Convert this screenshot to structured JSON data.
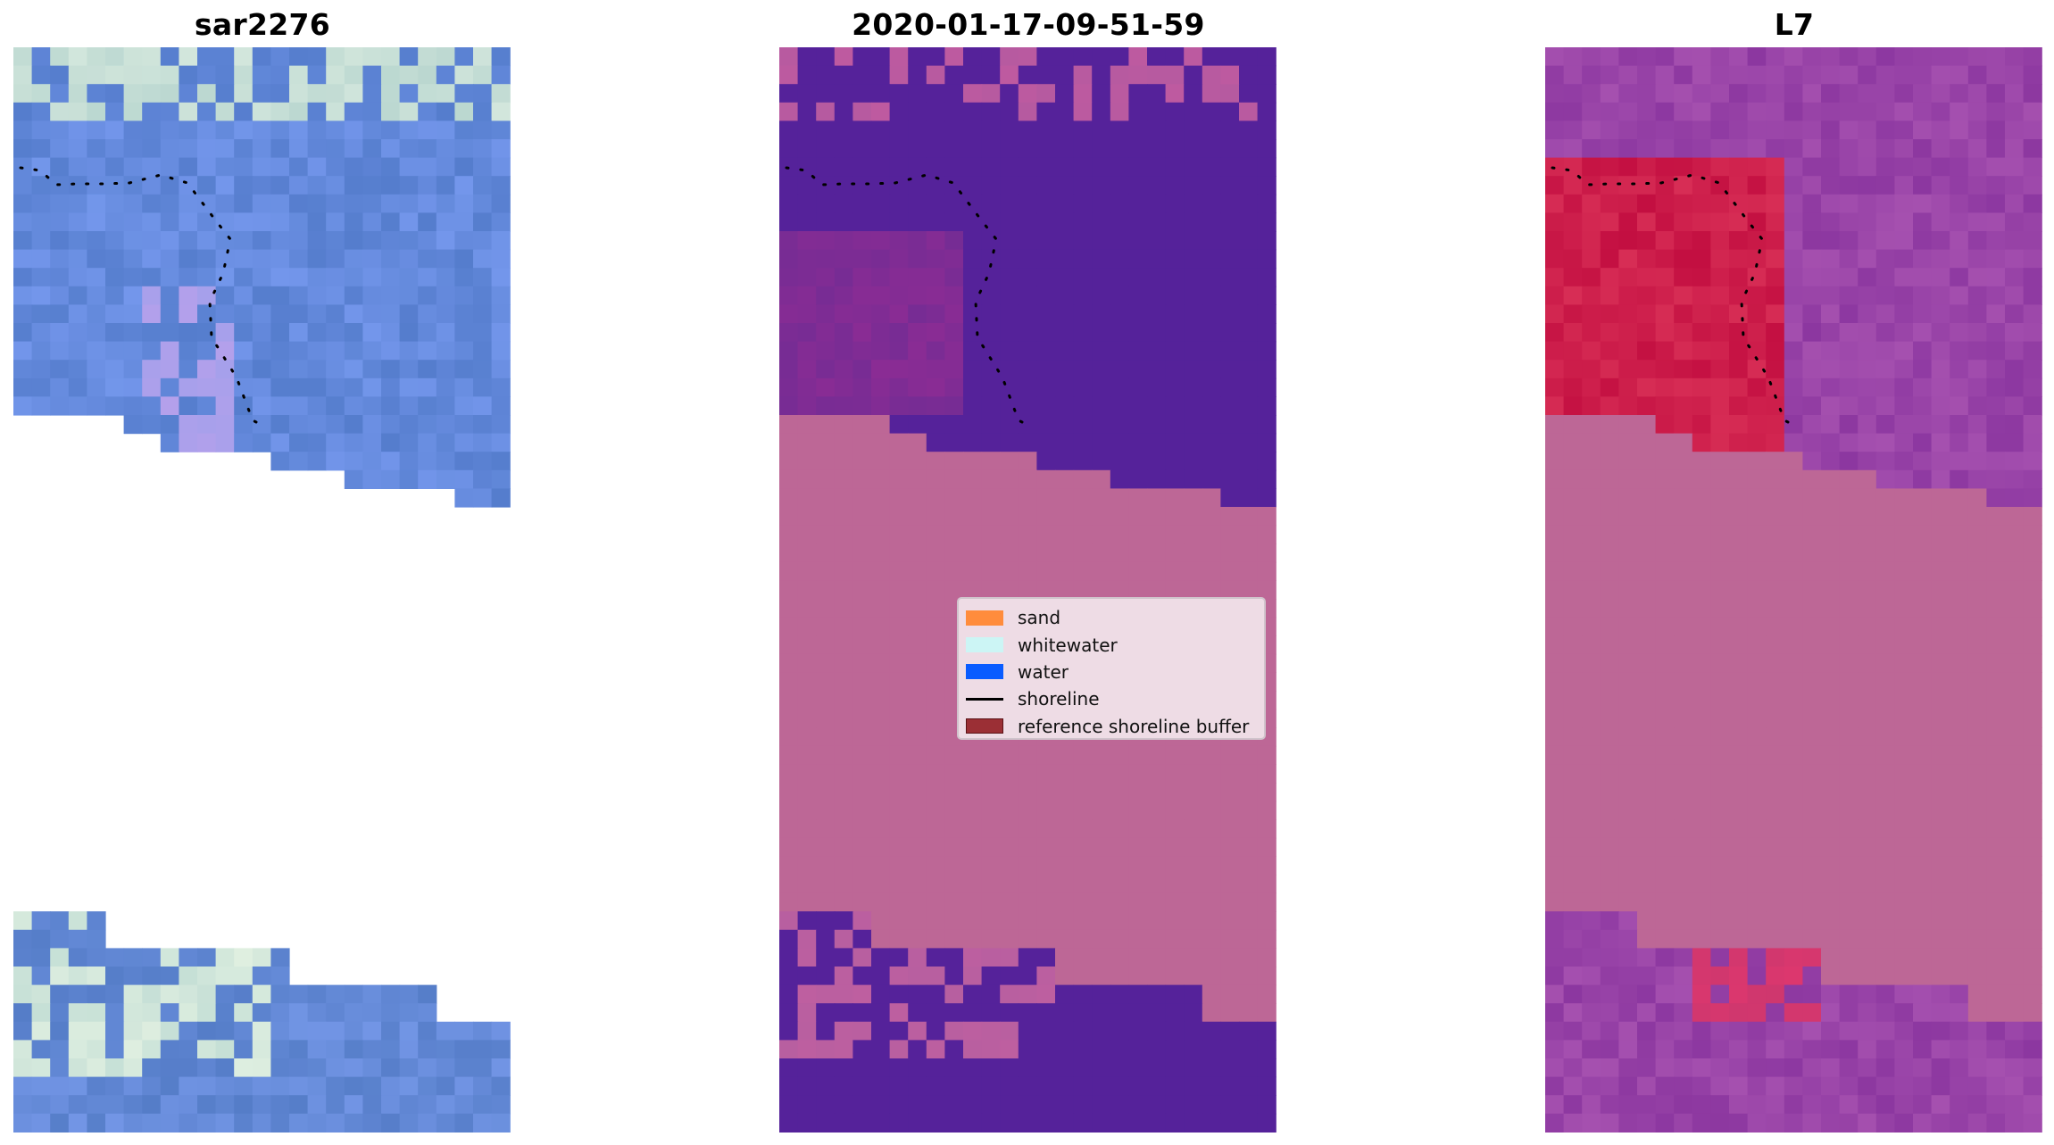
{
  "panels": [
    {
      "id": "rgb",
      "title": "sar2276"
    },
    {
      "id": "classified",
      "title": "2020-01-17-09-51-59"
    },
    {
      "id": "index",
      "title": "L7"
    }
  ],
  "legend": {
    "items": [
      {
        "label": "sand",
        "color": "#ff8c3c",
        "kind": "patch"
      },
      {
        "label": "whitewater",
        "color": "#ccf5f5",
        "kind": "patch"
      },
      {
        "label": "water",
        "color": "#0a5cff",
        "kind": "patch"
      },
      {
        "label": "shoreline",
        "color": "#000000",
        "kind": "line"
      },
      {
        "label": "reference shoreline buffer",
        "color": "#9b2f35",
        "kind": "patch"
      }
    ]
  },
  "colors": {
    "nodata_mask": "#bd6796",
    "class_water": "#55229a",
    "class_sand_blend": "#7a2c90",
    "rgb_water": "#5f88d6",
    "rgb_whitewater": "#c7e3d8",
    "index_water": "#9546a5",
    "index_land": "#c20f42"
  }
}
